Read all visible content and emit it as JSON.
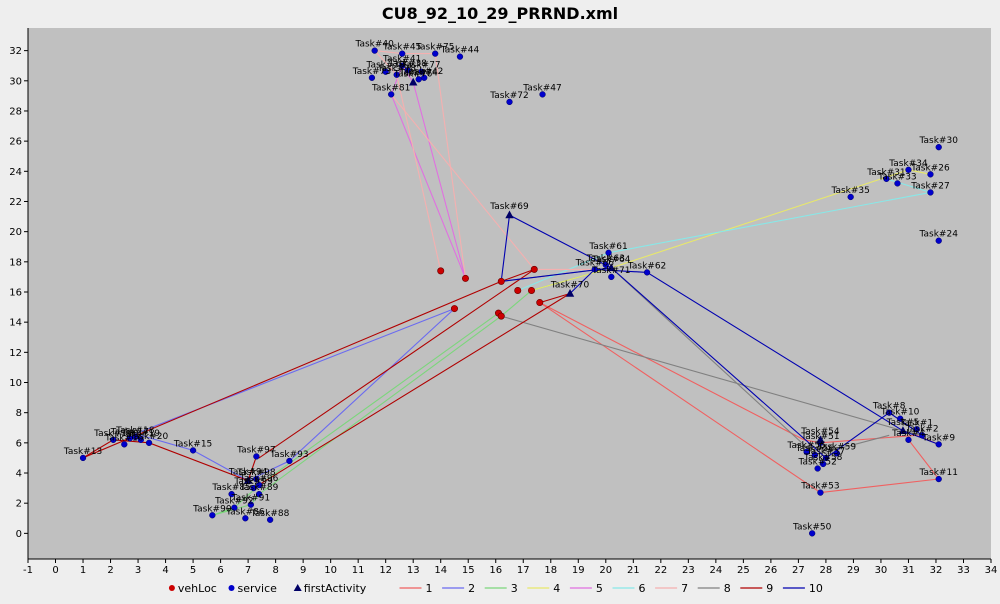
{
  "chart_data": {
    "type": "scatter",
    "title": "CU8_92_10_29_PRRND.xml",
    "xlabel": "",
    "ylabel": "",
    "xlim": [
      -1,
      34
    ],
    "ylim": [
      -1.7,
      33.5
    ],
    "xticks": [
      "-1",
      "0",
      "1",
      "2",
      "3",
      "4",
      "5",
      "6",
      "7",
      "8",
      "9",
      "10",
      "11",
      "12",
      "13",
      "14",
      "15",
      "16",
      "17",
      "18",
      "19",
      "20",
      "21",
      "22",
      "23",
      "24",
      "25",
      "26",
      "27",
      "28",
      "29",
      "30",
      "31",
      "32",
      "33",
      "34"
    ],
    "yticks": [
      "0",
      "2",
      "4",
      "6",
      "8",
      "10",
      "12",
      "14",
      "16",
      "18",
      "20",
      "22",
      "24",
      "26",
      "28",
      "30",
      "32"
    ],
    "grid": false,
    "legend_position": "bottom",
    "legend": [
      {
        "name": "vehLoc",
        "kind": "marker",
        "marker": "circle",
        "color": "#cc0000"
      },
      {
        "name": "service",
        "kind": "marker",
        "marker": "circle",
        "color": "#0000cc"
      },
      {
        "name": "firstActivity",
        "kind": "marker",
        "marker": "triangle",
        "color": "#000066"
      },
      {
        "name": "1",
        "kind": "line",
        "color": "#f06060"
      },
      {
        "name": "2",
        "kind": "line",
        "color": "#6a6af0"
      },
      {
        "name": "3",
        "kind": "line",
        "color": "#7cd67c"
      },
      {
        "name": "4",
        "kind": "line",
        "color": "#e8e86a"
      },
      {
        "name": "5",
        "kind": "line",
        "color": "#e070e0"
      },
      {
        "name": "6",
        "kind": "line",
        "color": "#88e8e8"
      },
      {
        "name": "7",
        "kind": "line",
        "color": "#f4b0b0"
      },
      {
        "name": "8",
        "kind": "line",
        "color": "#808080"
      },
      {
        "name": "9",
        "kind": "line",
        "color": "#b00000"
      },
      {
        "name": "10",
        "kind": "line",
        "color": "#0000b0"
      }
    ],
    "vehLoc": [
      [
        14.0,
        17.4
      ],
      [
        14.9,
        16.9
      ],
      [
        16.2,
        16.7
      ],
      [
        17.4,
        17.5
      ],
      [
        16.8,
        16.1
      ],
      [
        17.3,
        16.1
      ],
      [
        16.1,
        14.6
      ],
      [
        16.2,
        14.4
      ],
      [
        14.5,
        14.9
      ],
      [
        17.6,
        15.3
      ]
    ],
    "service": [
      {
        "label": "Task#13",
        "x": 1.0,
        "y": 5.0
      },
      {
        "label": "Task#14",
        "x": 2.1,
        "y": 6.2
      },
      {
        "label": "Task#16",
        "x": 2.5,
        "y": 5.9
      },
      {
        "label": "Task#17",
        "x": 2.7,
        "y": 6.3
      },
      {
        "label": "Task#18",
        "x": 2.9,
        "y": 6.4
      },
      {
        "label": "Task#19",
        "x": 3.1,
        "y": 6.2
      },
      {
        "label": "Task#20",
        "x": 3.4,
        "y": 6.0
      },
      {
        "label": "Task#15",
        "x": 5.0,
        "y": 5.5
      },
      {
        "label": "Task#97",
        "x": 7.3,
        "y": 5.1
      },
      {
        "label": "Task#93",
        "x": 8.5,
        "y": 4.8
      },
      {
        "label": "Task#98",
        "x": 7.3,
        "y": 3.6
      },
      {
        "label": "Task#96",
        "x": 7.4,
        "y": 3.2
      },
      {
        "label": "Task#99",
        "x": 7.2,
        "y": 3.0
      },
      {
        "label": "Task#89",
        "x": 7.4,
        "y": 2.6
      },
      {
        "label": "Task#85",
        "x": 6.4,
        "y": 2.6
      },
      {
        "label": "Task#91",
        "x": 7.1,
        "y": 1.9
      },
      {
        "label": "Task#92",
        "x": 6.5,
        "y": 1.7
      },
      {
        "label": "Task#90",
        "x": 5.7,
        "y": 1.2
      },
      {
        "label": "Task#86",
        "x": 6.9,
        "y": 1.0
      },
      {
        "label": "Task#88",
        "x": 7.8,
        "y": 0.9
      },
      {
        "label": "Task#40",
        "x": 11.6,
        "y": 32.0
      },
      {
        "label": "Task#45",
        "x": 12.6,
        "y": 31.8
      },
      {
        "label": "Task#75",
        "x": 13.8,
        "y": 31.8
      },
      {
        "label": "Task#44",
        "x": 14.7,
        "y": 31.6
      },
      {
        "label": "Task#41",
        "x": 12.6,
        "y": 31.0
      },
      {
        "label": "Task#38",
        "x": 12.8,
        "y": 30.7
      },
      {
        "label": "Task#77",
        "x": 13.3,
        "y": 30.6
      },
      {
        "label": "Task#73",
        "x": 11.5,
        "y": 30.2
      },
      {
        "label": "Task#42",
        "x": 13.4,
        "y": 30.2
      },
      {
        "label": "Task#39",
        "x": 12.0,
        "y": 30.6
      },
      {
        "label": "Task#78",
        "x": 12.4,
        "y": 30.4
      },
      {
        "label": "Task#74",
        "x": 13.2,
        "y": 30.1
      },
      {
        "label": "Task#81",
        "x": 12.2,
        "y": 29.1
      },
      {
        "label": "Task#72",
        "x": 16.5,
        "y": 28.6
      },
      {
        "label": "Task#47",
        "x": 17.7,
        "y": 29.1
      },
      {
        "label": "Task#61",
        "x": 20.1,
        "y": 18.6
      },
      {
        "label": "Task#66",
        "x": 19.6,
        "y": 17.5
      },
      {
        "label": "Task#63",
        "x": 20.0,
        "y": 17.8
      },
      {
        "label": "Task#71",
        "x": 20.2,
        "y": 17.0
      },
      {
        "label": "Task#62",
        "x": 21.5,
        "y": 17.3
      },
      {
        "label": "Task#30",
        "x": 32.1,
        "y": 25.6
      },
      {
        "label": "Task#34",
        "x": 31.0,
        "y": 24.1
      },
      {
        "label": "Task#26",
        "x": 31.8,
        "y": 23.8
      },
      {
        "label": "Task#31",
        "x": 30.2,
        "y": 23.5
      },
      {
        "label": "Task#33",
        "x": 30.6,
        "y": 23.2
      },
      {
        "label": "Task#27",
        "x": 31.8,
        "y": 22.6
      },
      {
        "label": "Task#35",
        "x": 28.9,
        "y": 22.3
      },
      {
        "label": "Task#24",
        "x": 32.1,
        "y": 19.4
      },
      {
        "label": "Task#8",
        "x": 30.3,
        "y": 8.0
      },
      {
        "label": "Task#10",
        "x": 30.7,
        "y": 7.6
      },
      {
        "label": "Task#1",
        "x": 31.3,
        "y": 6.9
      },
      {
        "label": "Task#2",
        "x": 31.5,
        "y": 6.5
      },
      {
        "label": "Task#4",
        "x": 31.0,
        "y": 6.2
      },
      {
        "label": "Task#9",
        "x": 32.1,
        "y": 5.9
      },
      {
        "label": "Task#11",
        "x": 32.1,
        "y": 3.6
      },
      {
        "label": "Task#51",
        "x": 27.8,
        "y": 6.0
      },
      {
        "label": "Task#55",
        "x": 27.3,
        "y": 5.4
      },
      {
        "label": "Task#59",
        "x": 28.4,
        "y": 5.3
      },
      {
        "label": "Task#56",
        "x": 27.6,
        "y": 5.2
      },
      {
        "label": "Task#57",
        "x": 28.0,
        "y": 5.0
      },
      {
        "label": "Task#58",
        "x": 27.9,
        "y": 4.6
      },
      {
        "label": "Task#52",
        "x": 27.7,
        "y": 4.3
      },
      {
        "label": "Task#53",
        "x": 27.8,
        "y": 2.7
      },
      {
        "label": "Task#50",
        "x": 27.5,
        "y": 0.0
      }
    ],
    "firstActivity": [
      {
        "label": "Task#69",
        "x": 16.5,
        "y": 21.1
      },
      {
        "label": "Task#70",
        "x": 18.7,
        "y": 15.9
      },
      {
        "label": "Task#76",
        "x": 13.0,
        "y": 29.9
      },
      {
        "label": "Task#64",
        "x": 20.2,
        "y": 17.6
      },
      {
        "label": "Task#94",
        "x": 7.0,
        "y": 3.5
      },
      {
        "label": "Task#5",
        "x": 30.8,
        "y": 6.8
      },
      {
        "label": "Task#54",
        "x": 27.8,
        "y": 6.2
      }
    ],
    "series": [
      {
        "name": "1",
        "color": "#f06060",
        "points": [
          [
            17.6,
            15.3
          ],
          [
            27.2,
            6.2
          ],
          [
            27.8,
            6.0
          ],
          [
            31.3,
            6.5
          ],
          [
            32.1,
            5.9
          ]
        ]
      },
      {
        "name": "1",
        "color": "#f06060",
        "points": [
          [
            17.6,
            15.3
          ],
          [
            27.8,
            2.7
          ],
          [
            32.1,
            3.6
          ],
          [
            31.0,
            6.2
          ]
        ]
      },
      {
        "name": "2",
        "color": "#6a6af0",
        "points": [
          [
            14.5,
            14.9
          ],
          [
            2.9,
            6.6
          ],
          [
            5.0,
            5.5
          ],
          [
            7.0,
            3.5
          ],
          [
            8.5,
            4.8
          ],
          [
            14.5,
            14.9
          ]
        ]
      },
      {
        "name": "3",
        "color": "#7cd67c",
        "points": [
          [
            16.1,
            14.6
          ],
          [
            7.4,
            3.2
          ],
          [
            6.5,
            1.7
          ],
          [
            5.7,
            1.2
          ],
          [
            7.1,
            1.9
          ],
          [
            7.4,
            2.6
          ],
          [
            16.2,
            14.4
          ]
        ]
      },
      {
        "name": "3",
        "color": "#7cd67c",
        "points": [
          [
            16.2,
            14.4
          ],
          [
            17.3,
            16.1
          ],
          [
            20.2,
            17.6
          ]
        ]
      },
      {
        "name": "4",
        "color": "#e8e86a",
        "points": [
          [
            17.3,
            16.1
          ],
          [
            20.2,
            17.6
          ],
          [
            31.0,
            24.1
          ],
          [
            31.8,
            23.8
          ]
        ]
      },
      {
        "name": "5",
        "color": "#e070e0",
        "points": [
          [
            14.9,
            16.9
          ],
          [
            12.2,
            29.1
          ],
          [
            12.6,
            31.0
          ],
          [
            13.0,
            29.9
          ],
          [
            14.9,
            16.9
          ]
        ]
      },
      {
        "name": "6",
        "color": "#88e8e8",
        "points": [
          [
            16.8,
            16.1
          ],
          [
            20.1,
            18.6
          ],
          [
            31.8,
            22.6
          ],
          [
            30.2,
            23.5
          ]
        ]
      },
      {
        "name": "7",
        "color": "#f4b0b0",
        "points": [
          [
            14.0,
            17.4
          ],
          [
            12.4,
            30.4
          ],
          [
            11.6,
            32.0
          ],
          [
            12.6,
            31.8
          ],
          [
            13.8,
            31.8
          ],
          [
            14.9,
            16.9
          ]
        ]
      },
      {
        "name": "7",
        "color": "#f4b0b0",
        "points": [
          [
            12.2,
            29.1
          ],
          [
            17.4,
            17.5
          ],
          [
            19.6,
            17.5
          ]
        ]
      },
      {
        "name": "8",
        "color": "#808080",
        "points": [
          [
            16.2,
            14.4
          ],
          [
            30.8,
            6.8
          ],
          [
            31.5,
            6.5
          ]
        ]
      },
      {
        "name": "8",
        "color": "#808080",
        "points": [
          [
            16.2,
            16.7
          ],
          [
            20.2,
            17.6
          ],
          [
            27.6,
            5.2
          ],
          [
            30.3,
            6.5
          ]
        ]
      },
      {
        "name": "9",
        "color": "#b00000",
        "points": [
          [
            1.0,
            5.0
          ],
          [
            2.1,
            6.2
          ],
          [
            3.4,
            6.0
          ],
          [
            7.0,
            3.5
          ],
          [
            7.3,
            5.1
          ],
          [
            7.4,
            5.0
          ],
          [
            17.4,
            17.5
          ],
          [
            16.2,
            16.7
          ]
        ]
      },
      {
        "name": "9",
        "color": "#b00000",
        "points": [
          [
            1.0,
            5.0
          ],
          [
            16.2,
            16.7
          ]
        ]
      },
      {
        "name": "9",
        "color": "#b00000",
        "points": [
          [
            7.2,
            3.0
          ],
          [
            18.7,
            15.9
          ],
          [
            17.6,
            15.3
          ]
        ]
      },
      {
        "name": "10",
        "color": "#0000b0",
        "points": [
          [
            16.2,
            16.7
          ],
          [
            16.5,
            21.1
          ],
          [
            20.2,
            17.6
          ],
          [
            16.2,
            16.7
          ]
        ]
      },
      {
        "name": "10",
        "color": "#0000b0",
        "points": [
          [
            18.7,
            15.9
          ],
          [
            19.6,
            17.5
          ],
          [
            21.5,
            17.3
          ],
          [
            30.8,
            6.8
          ],
          [
            32.1,
            5.9
          ]
        ]
      },
      {
        "name": "10",
        "color": "#0000b0",
        "points": [
          [
            20.2,
            17.6
          ],
          [
            28.0,
            5.0
          ],
          [
            30.3,
            8.0
          ],
          [
            31.5,
            6.5
          ]
        ]
      }
    ]
  }
}
